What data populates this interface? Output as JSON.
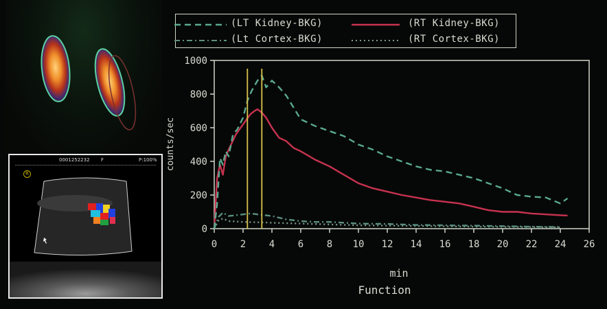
{
  "us_header": {
    "id": "0001252232",
    "mode": "F",
    "power": "P:100%",
    "marker": "R"
  },
  "chart_data": {
    "type": "line",
    "xlabel": "min",
    "caption": "Function",
    "ylabel": "counts/sec",
    "xlim": [
      0,
      26
    ],
    "ylim": [
      0,
      1000
    ],
    "xticks": [
      0,
      2,
      4,
      6,
      8,
      10,
      12,
      14,
      16,
      18,
      20,
      22,
      24,
      26
    ],
    "yticks": [
      0,
      200,
      400,
      600,
      800,
      1000
    ],
    "markers_x": [
      2.3,
      3.3
    ],
    "legend": [
      {
        "label": "(LT Kidney-BKG)",
        "style": "dashed",
        "color": "#59a88f"
      },
      {
        "label": "(RT Kidney-BKG)",
        "style": "solid",
        "color": "#c8324f"
      },
      {
        "label": "(Lt Cortex-BKG)",
        "style": "dashdot",
        "color": "#5b8f80"
      },
      {
        "label": "(RT Cortex-BKG)",
        "style": "dotted",
        "color": "#7a9a88"
      }
    ],
    "series": [
      {
        "name": "(LT Kidney-BKG)",
        "color": "#59a88f",
        "dash": "9 6",
        "x": [
          0,
          0.2,
          0.4,
          0.6,
          0.8,
          1,
          1.3,
          1.6,
          2,
          2.3,
          2.6,
          3,
          3.3,
          3.6,
          4,
          4.5,
          5,
          5.5,
          6,
          6.5,
          7,
          8,
          9,
          10,
          11,
          12,
          13,
          14,
          15,
          16,
          17,
          18,
          19,
          20,
          21,
          22,
          23,
          24,
          24.5
        ],
        "y": [
          0,
          150,
          420,
          380,
          460,
          430,
          560,
          590,
          660,
          760,
          820,
          880,
          910,
          840,
          880,
          840,
          790,
          720,
          650,
          630,
          610,
          580,
          550,
          500,
          470,
          430,
          400,
          370,
          350,
          340,
          320,
          300,
          270,
          240,
          200,
          190,
          185,
          150,
          180
        ]
      },
      {
        "name": "(RT Kidney-BKG)",
        "color": "#c8324f",
        "dash": "",
        "x": [
          0,
          0.2,
          0.4,
          0.6,
          0.8,
          1,
          1.5,
          2,
          2.5,
          2.8,
          3,
          3.3,
          3.6,
          4,
          4.5,
          5,
          5.5,
          6,
          7,
          8,
          9,
          10,
          11,
          12,
          13,
          14,
          15,
          16,
          17,
          18,
          19,
          20,
          21,
          22,
          23,
          24,
          24.5
        ],
        "y": [
          0,
          300,
          380,
          320,
          430,
          470,
          560,
          620,
          680,
          700,
          710,
          690,
          660,
          600,
          540,
          520,
          480,
          460,
          410,
          370,
          320,
          270,
          240,
          220,
          200,
          185,
          170,
          160,
          150,
          130,
          110,
          100,
          100,
          90,
          85,
          80,
          78
        ]
      },
      {
        "name": "(Lt Cortex-BKG)",
        "color": "#5b8f80",
        "dash": "8 4 2 4",
        "x": [
          0,
          0.3,
          0.6,
          1,
          1.5,
          2,
          2.5,
          3,
          3.5,
          4,
          5,
          6,
          7,
          8,
          9,
          10,
          12,
          14,
          16,
          18,
          20,
          22,
          24
        ],
        "y": [
          0,
          70,
          95,
          75,
          80,
          85,
          90,
          85,
          80,
          75,
          55,
          45,
          40,
          40,
          35,
          30,
          28,
          22,
          20,
          18,
          15,
          12,
          10
        ]
      },
      {
        "name": "(RT Cortex-BKG)",
        "color": "#7a9a88",
        "dash": "2 4",
        "x": [
          0,
          0.3,
          0.6,
          1,
          2,
          3,
          4,
          6,
          8,
          10,
          14,
          18,
          22,
          24
        ],
        "y": [
          0,
          50,
          60,
          45,
          40,
          38,
          35,
          30,
          25,
          20,
          16,
          12,
          10,
          8
        ]
      }
    ]
  }
}
